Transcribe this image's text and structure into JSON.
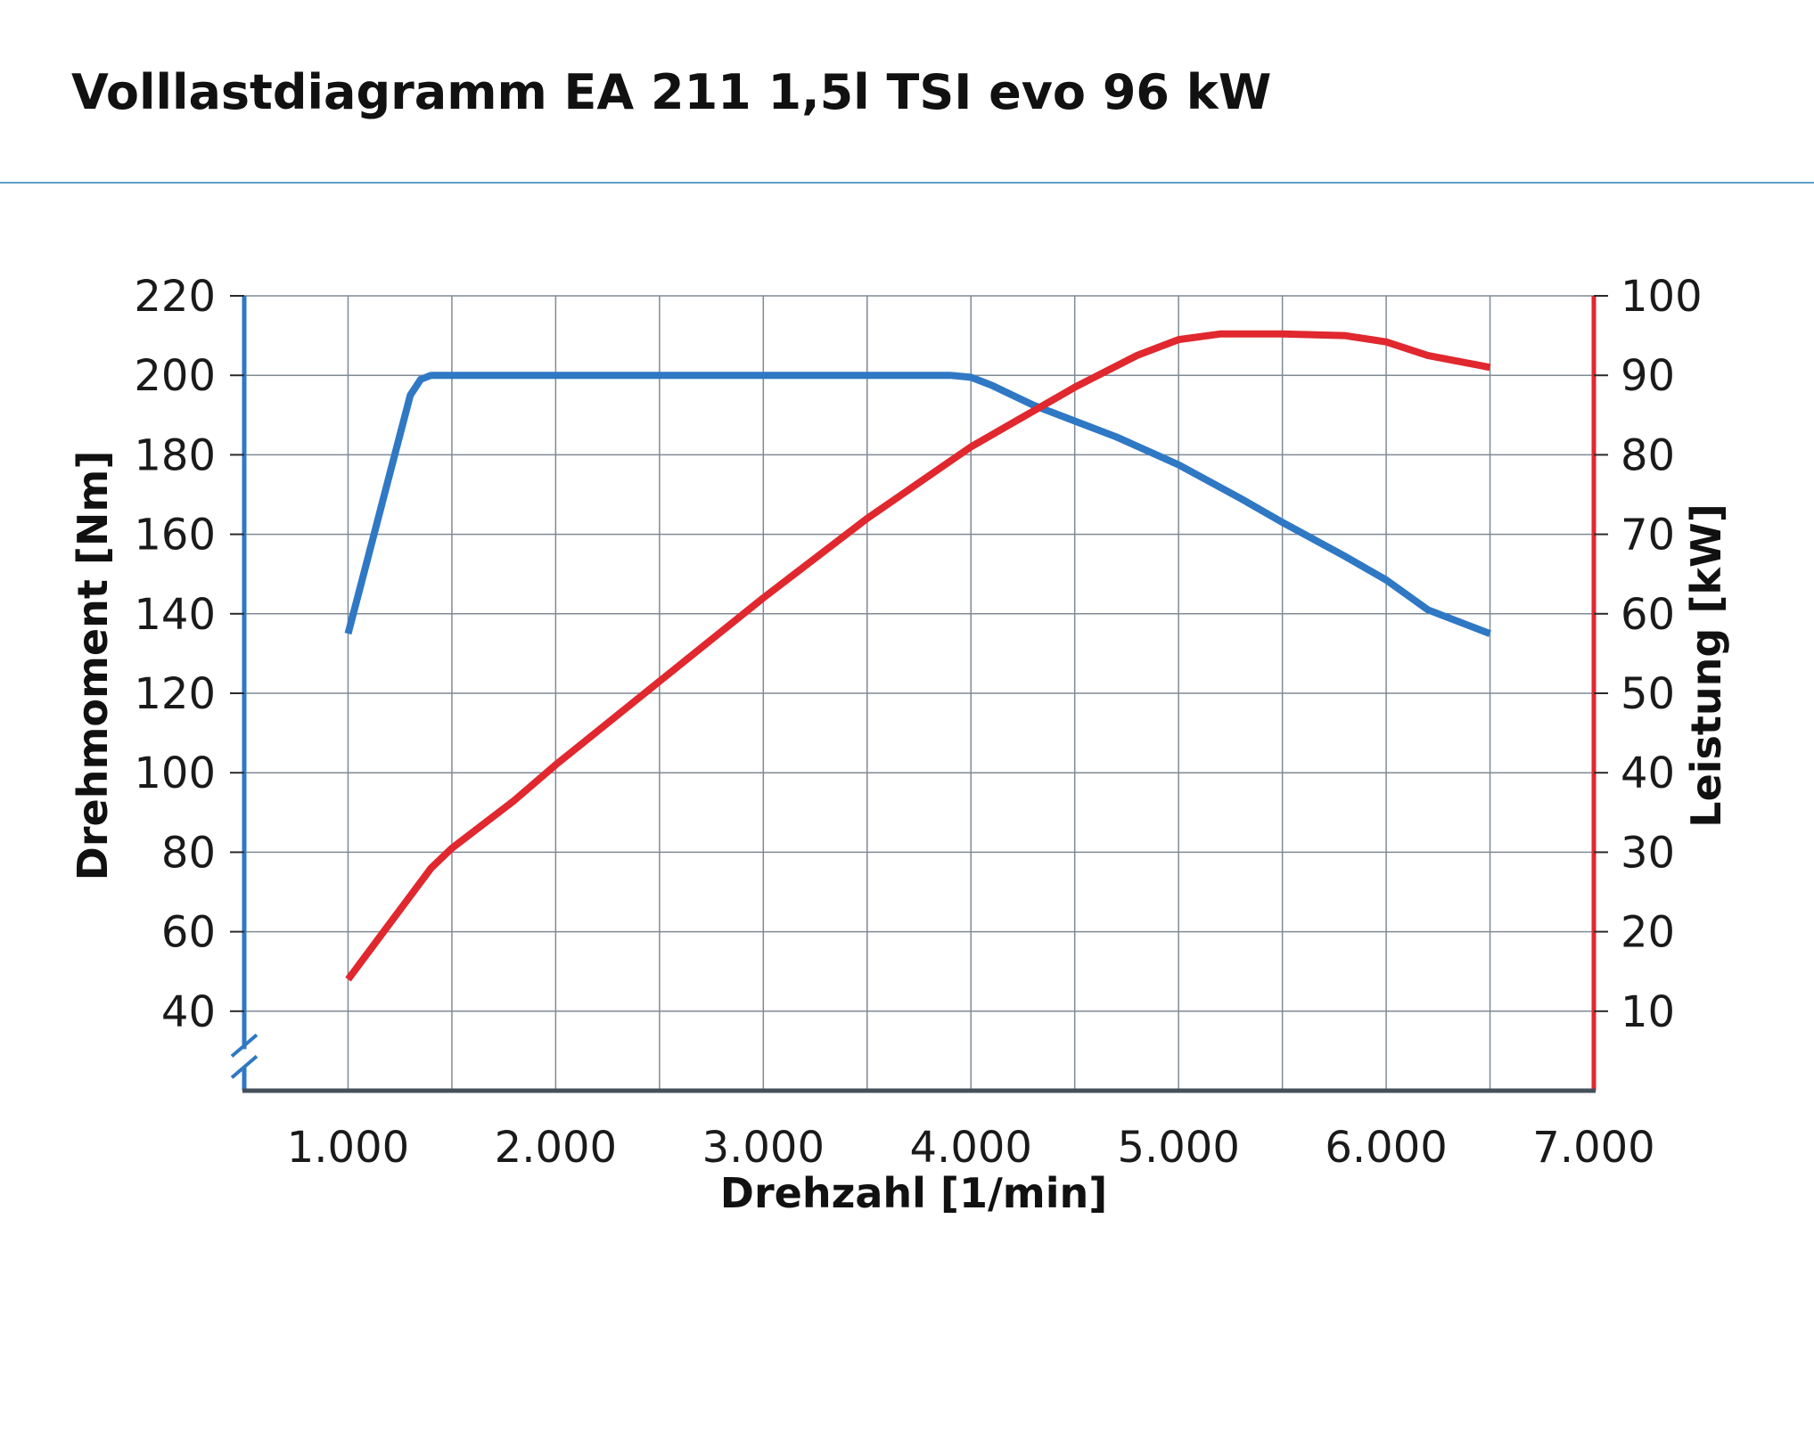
{
  "title": "Volllastdiagramm EA 211 1,5l TSI evo 96 kW",
  "colors": {
    "torque": "#2f78c4",
    "power": "#e0282e",
    "grid": "#808a94",
    "axis_bottom": "#46505a"
  },
  "chart_data": {
    "type": "line",
    "title": "Volllastdiagramm EA 211 1,5l TSI evo 96 kW",
    "xlabel": "Drehzahl [1/min]",
    "ylabel_left": "Drehmoment [Nm]",
    "ylabel_right": "Leistung [kW]",
    "xlim": [
      500,
      7000
    ],
    "ylim_left": [
      20,
      220
    ],
    "ylim_right": [
      0,
      100
    ],
    "x_ticks": [
      1000,
      2000,
      3000,
      4000,
      5000,
      6000,
      7000
    ],
    "x_tick_labels": [
      "1.000",
      "2.000",
      "3.000",
      "4.000",
      "5.000",
      "6.000",
      "7.000"
    ],
    "y_left_ticks": [
      40,
      60,
      80,
      100,
      120,
      140,
      160,
      180,
      200,
      220
    ],
    "y_left_tick_labels": [
      "40",
      "60",
      "80",
      "100",
      "120",
      "140",
      "160",
      "180",
      "200",
      "220"
    ],
    "y_right_ticks": [
      10,
      20,
      30,
      40,
      50,
      60,
      70,
      80,
      90,
      100
    ],
    "y_right_tick_labels": [
      "10",
      "20",
      "30",
      "40",
      "50",
      "60",
      "70",
      "80",
      "90",
      "100"
    ],
    "x_gridlines": [
      1000,
      1500,
      2000,
      2500,
      3000,
      3500,
      4000,
      4500,
      5000,
      5500,
      6000,
      6500
    ],
    "grid": true,
    "left_axis_break": true,
    "series": [
      {
        "axis": "left",
        "color": "#2f78c4",
        "x": [
          1000,
          1100,
          1200,
          1300,
          1350,
          1400,
          1500,
          2000,
          3000,
          3900,
          4000,
          4100,
          4300,
          4500,
          4700,
          5000,
          5300,
          5500,
          5800,
          6000,
          6200,
          6500
        ],
        "y": [
          135,
          155,
          175,
          195,
          199,
          200,
          200,
          200,
          200,
          200,
          199.5,
          197.5,
          192.5,
          188.5,
          184.5,
          177.5,
          169,
          163,
          154.5,
          148.5,
          141,
          135
        ]
      },
      {
        "axis": "right",
        "color": "#e0282e",
        "x": [
          1000,
          1200,
          1400,
          1500,
          1800,
          2000,
          2500,
          3000,
          3500,
          4000,
          4500,
          4800,
          5000,
          5200,
          5500,
          5800,
          6000,
          6200,
          6500
        ],
        "y": [
          14,
          21,
          28,
          30.5,
          36.5,
          41,
          51.5,
          62,
          72,
          81,
          88.5,
          92.5,
          94.5,
          95.2,
          95.2,
          95,
          94.2,
          92.5,
          91
        ]
      }
    ]
  }
}
